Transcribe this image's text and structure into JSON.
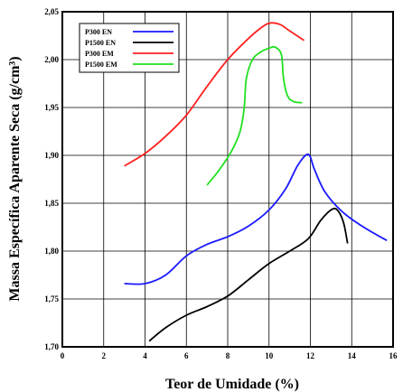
{
  "chart_data": {
    "type": "line",
    "xlabel": "Teor de Umidade (%)",
    "ylabel": "Massa Específica Aparente Seca (g/cm³)",
    "xlim": [
      0,
      16
    ],
    "ylim": [
      1.7,
      2.05
    ],
    "x_ticks": [
      "0",
      "2",
      "4",
      "6",
      "8",
      "10",
      "12",
      "14",
      "16"
    ],
    "y_ticks": [
      "1,70",
      "1,75",
      "1,80",
      "1,85",
      "1,90",
      "1,95",
      "2,00",
      "2,05"
    ],
    "grid": true,
    "legend_position": "top-left",
    "series": [
      {
        "name": "P300 EN",
        "color": "#1a1aff",
        "points": [
          [
            3.0,
            1.766
          ],
          [
            4.0,
            1.766
          ],
          [
            5.0,
            1.775
          ],
          [
            6.0,
            1.795
          ],
          [
            7.0,
            1.807
          ],
          [
            8.0,
            1.815
          ],
          [
            9.0,
            1.826
          ],
          [
            10.0,
            1.843
          ],
          [
            10.8,
            1.865
          ],
          [
            11.4,
            1.89
          ],
          [
            11.9,
            1.901
          ],
          [
            12.2,
            1.885
          ],
          [
            12.7,
            1.862
          ],
          [
            13.5,
            1.842
          ],
          [
            14.5,
            1.826
          ],
          [
            15.7,
            1.811
          ]
        ]
      },
      {
        "name": "P1500 EN",
        "color": "#000000",
        "points": [
          [
            4.2,
            1.706
          ],
          [
            5.0,
            1.72
          ],
          [
            6.0,
            1.733
          ],
          [
            7.0,
            1.742
          ],
          [
            8.0,
            1.753
          ],
          [
            9.0,
            1.77
          ],
          [
            10.0,
            1.787
          ],
          [
            11.0,
            1.8
          ],
          [
            11.9,
            1.813
          ],
          [
            12.5,
            1.832
          ],
          [
            13.0,
            1.843
          ],
          [
            13.3,
            1.843
          ],
          [
            13.6,
            1.83
          ],
          [
            13.8,
            1.808
          ]
        ]
      },
      {
        "name": "P300 EM",
        "color": "#ff2020",
        "points": [
          [
            3.0,
            1.889
          ],
          [
            4.0,
            1.902
          ],
          [
            5.0,
            1.92
          ],
          [
            6.0,
            1.942
          ],
          [
            7.0,
            1.972
          ],
          [
            8.0,
            2.0
          ],
          [
            9.0,
            2.022
          ],
          [
            9.6,
            2.033
          ],
          [
            10.0,
            2.038
          ],
          [
            10.5,
            2.037
          ],
          [
            11.0,
            2.03
          ],
          [
            11.7,
            2.02
          ]
        ]
      },
      {
        "name": "P1500 EM",
        "color": "#20e020",
        "points": [
          [
            7.0,
            1.869
          ],
          [
            7.6,
            1.885
          ],
          [
            8.2,
            1.905
          ],
          [
            8.6,
            1.925
          ],
          [
            8.8,
            1.95
          ],
          [
            8.9,
            1.98
          ],
          [
            9.2,
            2.0
          ],
          [
            9.6,
            2.008
          ],
          [
            10.0,
            2.012
          ],
          [
            10.3,
            2.013
          ],
          [
            10.6,
            2.005
          ],
          [
            10.7,
            1.98
          ],
          [
            10.9,
            1.962
          ],
          [
            11.2,
            1.956
          ],
          [
            11.6,
            1.955
          ]
        ]
      }
    ]
  }
}
